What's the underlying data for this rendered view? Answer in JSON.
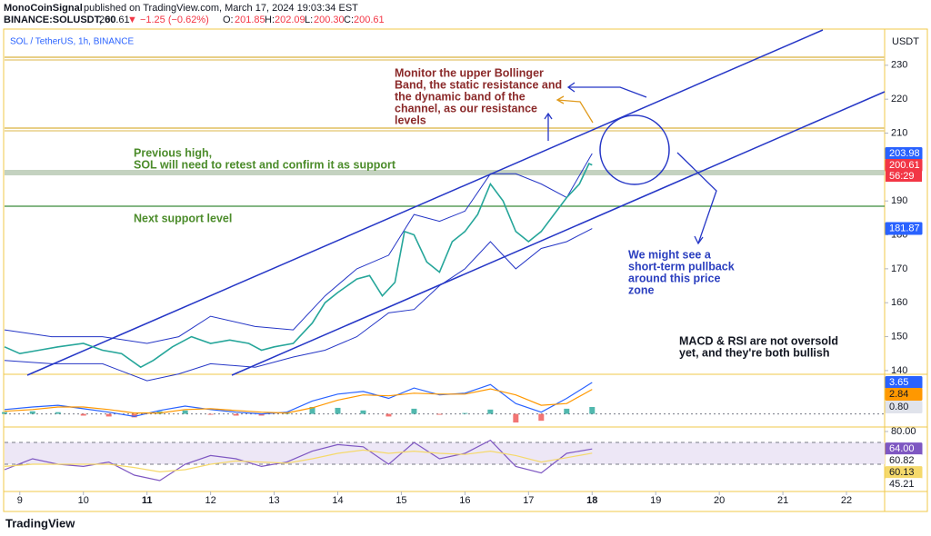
{
  "header": {
    "publisher": "MonoCoinSignal",
    "published": "published on TradingView.com, March 17, 2024 19:03:34 EST",
    "symbol": "BINANCE:SOLUSDT, 60",
    "last": "200.61",
    "change": "▼ −1.25 (−0.62%)",
    "o_label": "O:",
    "o": "201.85",
    "h_label": "H:",
    "h": "202.09",
    "l_label": "L:",
    "l": "200.30",
    "c_label": "C:",
    "c": "200.61"
  },
  "footer": {
    "logo": "TradingView"
  },
  "annotations": [
    {
      "lines": [
        "Monitor the upper Bollinger",
        "Band, the static resistance and",
        "the dynamic band of the",
        "channel, as our resistance",
        "levels"
      ],
      "color": "#8b2a2a"
    },
    {
      "lines": [
        "Previous high,",
        "SOL will need to retest and confirm it as support"
      ],
      "color": "#4c8c2b"
    },
    {
      "lines": [
        "Next support level"
      ],
      "color": "#4c8c2b"
    },
    {
      "lines": [
        "We might see a",
        "short-term pullback",
        "around this price",
        "zone"
      ],
      "color": "#2b3fbf"
    },
    {
      "lines": [
        "MACD & RSI are not oversold",
        "yet, and they're both bullish"
      ],
      "color": "#131722"
    }
  ],
  "chart_data": [
    {
      "type": "line",
      "legend": "SOL / TetherUS, 1h, BINANCE",
      "unit": "USDT",
      "x": [
        8.76,
        9.0,
        9.3,
        9.6,
        10.0,
        10.3,
        10.6,
        10.9,
        11.1,
        11.4,
        11.7,
        12.0,
        12.3,
        12.6,
        12.8,
        13.0,
        13.3,
        13.6,
        13.8,
        14.0,
        14.3,
        14.5,
        14.7,
        14.9,
        15.05,
        15.2,
        15.4,
        15.6,
        15.8,
        16.0,
        16.2,
        16.4,
        16.6,
        16.8,
        17.0,
        17.2,
        17.4,
        17.6,
        17.8,
        17.95,
        18.0
      ],
      "series": [
        {
          "name": "SOLUSDT",
          "color": "#26a69a",
          "values": [
            147,
            145,
            146,
            147,
            148,
            146,
            145,
            141,
            143,
            147,
            150,
            148,
            149,
            148,
            146,
            147,
            148,
            154,
            160,
            163,
            167,
            168,
            162,
            166,
            181,
            180,
            172,
            169,
            178,
            181,
            186,
            195,
            190,
            181,
            178,
            181,
            186,
            191,
            195,
            201,
            200.61
          ]
        }
      ],
      "bollinger": {
        "color": "#2536c6",
        "x": [
          8.76,
          9.5,
          10.3,
          11.0,
          11.5,
          12.0,
          12.7,
          13.3,
          13.8,
          14.3,
          14.8,
          15.2,
          15.6,
          16.0,
          16.4,
          16.8,
          17.2,
          17.6,
          18.0
        ],
        "upper": [
          152,
          150,
          150,
          148,
          150,
          156,
          153,
          152,
          162,
          170,
          174,
          186,
          184,
          187,
          198,
          198,
          195,
          191,
          203.98
        ],
        "lower": [
          143,
          142,
          142,
          137,
          139,
          142,
          141,
          144,
          146,
          150,
          157,
          158,
          165,
          170,
          178,
          170,
          176,
          178,
          181.87
        ]
      },
      "xlim": [
        8.76,
        22.6
      ],
      "xticks": [
        9,
        10,
        11,
        12,
        13,
        14,
        15,
        16,
        17,
        18,
        19,
        20,
        21,
        22
      ],
      "bold_xticks": [
        11,
        18
      ],
      "ylim": [
        138.9,
        240.4
      ],
      "yticks": [
        140,
        150,
        160,
        170,
        180,
        190,
        200,
        210,
        220,
        230
      ],
      "markers": [
        {
          "value": 203.98,
          "color": "#2962ff"
        },
        {
          "value": 200.61,
          "color": "#f23645"
        },
        {
          "value": 181.87,
          "color": "#2962ff"
        }
      ],
      "countdown": "56:29"
    },
    {
      "type": "macd",
      "x": [
        8.76,
        9.2,
        9.6,
        10.0,
        10.4,
        10.8,
        11.2,
        11.6,
        12.0,
        12.4,
        12.8,
        13.2,
        13.6,
        14.0,
        14.4,
        14.8,
        15.2,
        15.6,
        16.0,
        16.4,
        16.8,
        17.2,
        17.6,
        18.0
      ],
      "series": [
        {
          "name": "MACD",
          "color": "#2962ff",
          "values": [
            0.5,
            0.8,
            1.0,
            0.6,
            0.2,
            -0.3,
            0.4,
            0.9,
            0.5,
            0.2,
            0.0,
            0.2,
            1.5,
            2.3,
            2.6,
            1.8,
            3.0,
            2.2,
            2.4,
            3.4,
            1.2,
            0.2,
            1.8,
            3.65
          ]
        },
        {
          "name": "Signal",
          "color": "#ff9800",
          "values": [
            0.3,
            0.5,
            0.8,
            0.8,
            0.5,
            0.1,
            0.1,
            0.5,
            0.6,
            0.4,
            0.2,
            0.1,
            0.7,
            1.6,
            2.2,
            2.1,
            2.4,
            2.3,
            2.3,
            2.9,
            2.2,
            1.0,
            1.2,
            2.84
          ]
        }
      ],
      "histogram": [
        0.2,
        0.3,
        0.2,
        -0.2,
        -0.3,
        -0.4,
        0.3,
        0.4,
        -0.1,
        -0.2,
        -0.2,
        0.1,
        0.8,
        0.7,
        0.4,
        -0.3,
        0.6,
        -0.1,
        0.1,
        0.5,
        -1.0,
        -0.8,
        0.6,
        0.8
      ],
      "up_color": "#26a69a",
      "down_color": "#ef5350",
      "ylim": [
        -1.52,
        4.49
      ],
      "zero_line": 0,
      "markers": [
        {
          "value": 3.65,
          "color": "#2962ff"
        },
        {
          "value": 2.84,
          "color": "#ff9800"
        },
        {
          "value": 0.8,
          "label": "0.80",
          "color": "#e0e3eb"
        }
      ]
    },
    {
      "type": "rsi",
      "x": [
        8.76,
        9.2,
        9.6,
        10.0,
        10.4,
        10.8,
        11.2,
        11.6,
        12.0,
        12.4,
        12.8,
        13.2,
        13.6,
        14.0,
        14.4,
        14.8,
        15.2,
        15.6,
        16.0,
        16.4,
        16.8,
        17.2,
        17.6,
        18.0
      ],
      "series": [
        {
          "name": "RSI",
          "color": "#7e57c2",
          "values": [
            45,
            55,
            50,
            48,
            52,
            40,
            35,
            50,
            58,
            55,
            48,
            52,
            62,
            68,
            66,
            50,
            70,
            55,
            60,
            72,
            48,
            42,
            60,
            64
          ]
        },
        {
          "name": "RSI-MA",
          "color": "#f5d96b",
          "values": [
            48,
            50,
            50,
            50,
            50,
            47,
            43,
            45,
            50,
            53,
            52,
            51,
            55,
            60,
            63,
            60,
            62,
            60,
            59,
            62,
            58,
            52,
            56,
            60.13
          ]
        }
      ],
      "ylim": [
        25.8,
        83.3
      ],
      "band": [
        50,
        70
      ],
      "band_color": "#ede7f6",
      "yticks": [
        {
          "value": 80,
          "label": "80.00"
        }
      ],
      "markers": [
        {
          "value": 64,
          "label": "64.00",
          "color": "#7e57c2"
        },
        {
          "value": 60.82,
          "color": "#ffffff"
        },
        {
          "value": 60.13,
          "color": "#f5d96b"
        },
        {
          "value": 45.21,
          "color": "#ffffff"
        }
      ]
    }
  ]
}
